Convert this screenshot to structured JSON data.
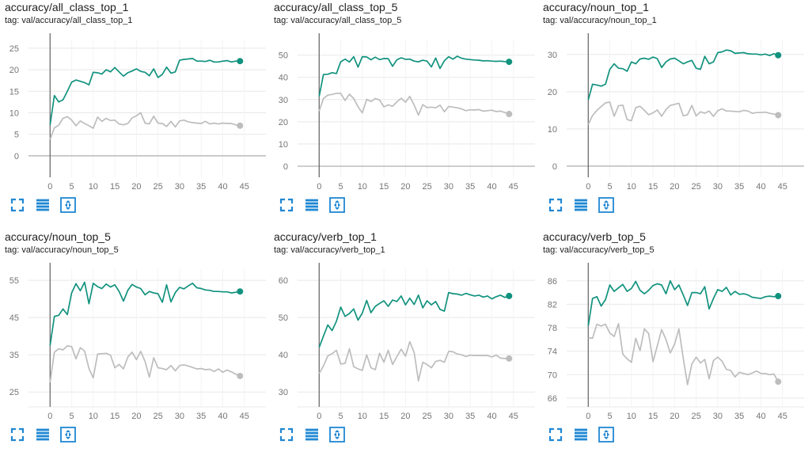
{
  "colors": {
    "train": "#11927e",
    "val": "#bdbdbd",
    "axis": "#616161",
    "grid": "#e8e8e8",
    "icon": "#1f87d3"
  },
  "tools": {
    "expand": "expand-icon",
    "lines": "toggle-log-icon",
    "fit": "fit-domain-icon"
  },
  "chart_data": [
    {
      "type": "line",
      "title": "accuracy/all_class_top_1",
      "subtitle": "tag: val/accuracy/all_class_top_1",
      "ylim": [
        -5,
        27
      ],
      "yticks": [
        0,
        5,
        10,
        15,
        20,
        25
      ],
      "xlim": [
        -5,
        50
      ],
      "xticks": [
        0,
        5,
        10,
        15,
        20,
        25,
        30,
        35,
        40,
        45
      ],
      "series": [
        {
          "role": "train",
          "values": [
            7.2,
            14,
            12.5,
            13,
            15,
            17.1,
            17.6,
            17.3,
            17,
            16.5,
            19.4,
            19.3,
            19,
            20,
            19.5,
            20.5,
            19.5,
            18.5,
            19.3,
            19.7,
            20.2,
            19.6,
            19.4,
            18.6,
            20.2,
            18.2,
            18.9,
            20.6,
            19.2,
            19.5,
            22.2,
            22.4,
            22.5,
            22.6,
            22,
            22,
            21.9,
            22.2,
            21.8,
            21.8,
            22,
            22.1,
            21.8,
            22,
            22
          ]
        },
        {
          "role": "val",
          "values": [
            3.8,
            6.5,
            7.1,
            8.7,
            9.1,
            8.3,
            7,
            8.1,
            7.5,
            7,
            6.4,
            9,
            8,
            8.7,
            8.2,
            8.3,
            7.4,
            7.2,
            7.5,
            8.8,
            9.3,
            10,
            7.6,
            7.4,
            9.2,
            7.6,
            7.5,
            6.8,
            8,
            6.7,
            8.1,
            8.3,
            7.9,
            7.7,
            7.6,
            7.5,
            8,
            7.4,
            7.6,
            7.4,
            7.6,
            7.5,
            7.5,
            7.2,
            7
          ]
        }
      ]
    },
    {
      "type": "line",
      "title": "accuracy/all_class_top_5",
      "subtitle": "tag: val/accuracy/all_class_top_5",
      "ylim": [
        -5,
        57
      ],
      "yticks": [
        0,
        10,
        20,
        30,
        40,
        50
      ],
      "xlim": [
        -5,
        50
      ],
      "xticks": [
        0,
        5,
        10,
        15,
        20,
        25,
        30,
        35,
        40,
        45
      ],
      "series": [
        {
          "role": "train",
          "values": [
            31.5,
            41.3,
            41.4,
            42.1,
            41.7,
            47,
            48.2,
            46.9,
            49.3,
            44.6,
            49.3,
            49.2,
            47.9,
            49.1,
            48,
            48.5,
            48.4,
            45,
            47.9,
            48.8,
            48.1,
            48.2,
            47.3,
            47,
            47.7,
            47.3,
            44.7,
            48.7,
            44,
            47.5,
            49.3,
            48.2,
            49.5,
            48.6,
            48.2,
            48,
            47.8,
            47.7,
            47.4,
            47.5,
            47.3,
            47.2,
            47.3,
            47.1,
            47
          ]
        },
        {
          "role": "val",
          "values": [
            24.8,
            30.5,
            32,
            32.3,
            32.8,
            32.8,
            29.6,
            32.4,
            30.5,
            26.8,
            24,
            30.1,
            29.1,
            30.5,
            29.8,
            26.7,
            27.6,
            27,
            29,
            30.6,
            28.8,
            31.4,
            27.5,
            23,
            27.7,
            26.4,
            26.6,
            26.3,
            27.5,
            24.5,
            26.9,
            26.6,
            26.3,
            25.8,
            25,
            25.4,
            25.3,
            25.5,
            24.8,
            25,
            25.2,
            24.6,
            24.8,
            24.2,
            23.5
          ]
        }
      ]
    },
    {
      "type": "line",
      "title": "accuracy/noun_top_1",
      "subtitle": "tag: val/accuracy/noun_top_1",
      "ylim": [
        -3,
        34
      ],
      "yticks": [
        0,
        10,
        20,
        30
      ],
      "xlim": [
        -5,
        50
      ],
      "xticks": [
        0,
        5,
        10,
        15,
        20,
        25,
        30,
        35,
        40,
        45
      ],
      "series": [
        {
          "role": "train",
          "values": [
            17.8,
            22,
            21.8,
            21.5,
            22,
            26,
            27.5,
            26.3,
            26.2,
            25.5,
            28,
            27.5,
            28.8,
            29,
            28.7,
            29.3,
            28.9,
            26.5,
            28,
            28.8,
            29,
            28.3,
            27.5,
            28,
            28.4,
            26.3,
            26,
            29.5,
            27.5,
            28,
            30.5,
            30.7,
            31.2,
            31,
            30.3,
            30.4,
            30.5,
            30.2,
            30.1,
            30.1,
            29.9,
            30.1,
            29.7,
            30.2,
            29.8
          ]
        },
        {
          "role": "val",
          "values": [
            11.2,
            13.6,
            15,
            16,
            17,
            17.2,
            13.4,
            16.2,
            16.4,
            12.5,
            12.2,
            15.7,
            16.1,
            15,
            13.8,
            14.3,
            15.1,
            13.4,
            15.2,
            16.3,
            16.6,
            16.9,
            13.5,
            13.8,
            16.3,
            13.5,
            14.6,
            14.2,
            14.8,
            13.4,
            14.9,
            15.4,
            14.8,
            14.8,
            14.7,
            14.6,
            15,
            14.8,
            14.2,
            14.4,
            14.4,
            14.5,
            14.2,
            14,
            13.7
          ]
        }
      ]
    },
    {
      "type": "line",
      "title": "accuracy/noun_top_5",
      "subtitle": "tag: val/accuracy/noun_top_5",
      "ylim": [
        21,
        58
      ],
      "yticks": [
        25,
        35,
        45,
        55
      ],
      "xlim": [
        -5,
        50
      ],
      "xticks": [
        0,
        5,
        10,
        15,
        20,
        25,
        30,
        35,
        40,
        45
      ],
      "series": [
        {
          "role": "train",
          "values": [
            37.5,
            45.3,
            45.6,
            47.3,
            45.8,
            51.6,
            54.1,
            52.2,
            54.5,
            48.7,
            54.2,
            53.3,
            52.8,
            54,
            53.2,
            53.8,
            52,
            49.4,
            52.3,
            53.9,
            53.2,
            52.8,
            51.1,
            52,
            51.6,
            51.4,
            49.1,
            53.8,
            49.2,
            51.7,
            53.1,
            52.7,
            53.5,
            54.2,
            53,
            52.8,
            52.4,
            52.3,
            52,
            52,
            51.9,
            51.9,
            51.6,
            51.8,
            52
          ]
        },
        {
          "role": "val",
          "values": [
            27.6,
            35.7,
            36.6,
            36.3,
            37.4,
            37.2,
            33.9,
            36.9,
            36,
            31.3,
            28.8,
            35.2,
            35.3,
            35.4,
            34.9,
            31.5,
            32.4,
            31.2,
            34.4,
            35.7,
            33.7,
            35.9,
            33.2,
            29,
            34.2,
            31.5,
            31.3,
            31,
            32.1,
            30.7,
            32.1,
            32.3,
            32,
            31.6,
            31.2,
            31.3,
            31,
            31.1,
            30.5,
            31.2,
            30.3,
            30.9,
            30.4,
            29.8,
            29.3
          ]
        }
      ]
    },
    {
      "type": "line",
      "title": "accuracy/verb_top_1",
      "subtitle": "tag: val/accuracy/verb_top_1",
      "ylim": [
        26,
        63
      ],
      "yticks": [
        30,
        40,
        50,
        60
      ],
      "xlim": [
        -5,
        50
      ],
      "xticks": [
        0,
        5,
        10,
        15,
        20,
        25,
        30,
        35,
        40,
        45
      ],
      "series": [
        {
          "role": "train",
          "values": [
            42,
            45,
            48,
            46.5,
            49,
            52.8,
            50.3,
            51.1,
            52.3,
            49.3,
            51.2,
            54.6,
            51.3,
            53,
            53.8,
            54.5,
            53,
            54.7,
            54.3,
            55.8,
            53.4,
            55.2,
            53.5,
            56,
            52.6,
            54.5,
            53.4,
            54.3,
            52.2,
            51.7,
            56.7,
            56.4,
            56.3,
            56,
            56.5,
            56.1,
            55.8,
            56,
            55.5,
            55.8,
            55,
            55.6,
            56,
            55.4,
            55.8
          ]
        },
        {
          "role": "val",
          "values": [
            35,
            37,
            39.7,
            40.3,
            41.2,
            37.5,
            37.7,
            41.6,
            36.8,
            36.2,
            35.8,
            40,
            36.5,
            36,
            40.4,
            38,
            41.2,
            37.4,
            39.5,
            41.5,
            39.6,
            43.5,
            40.6,
            33,
            38,
            37.4,
            36.5,
            38.2,
            38.5,
            38,
            40.9,
            40.8,
            40.2,
            40,
            39.5,
            39.9,
            39.8,
            39.8,
            39.8,
            39.8,
            39.4,
            39.9,
            39.1,
            39,
            39
          ]
        }
      ]
    },
    {
      "type": "line",
      "title": "accuracy/verb_top_5",
      "subtitle": "tag: val/accuracy/verb_top_5",
      "ylim": [
        64.5,
        88
      ],
      "yticks": [
        66,
        70,
        74,
        78,
        82,
        86
      ],
      "xlim": [
        -5,
        50
      ],
      "xticks": [
        0,
        5,
        10,
        15,
        20,
        25,
        30,
        35,
        40,
        45
      ],
      "series": [
        {
          "role": "train",
          "values": [
            78.3,
            83,
            83.3,
            81.7,
            82.8,
            85.3,
            84.2,
            84.8,
            85.4,
            84.2,
            84.7,
            85.9,
            84.4,
            83.8,
            84.4,
            85.2,
            85.5,
            85.3,
            83.8,
            86,
            84.5,
            85.3,
            83.6,
            81.8,
            84,
            84,
            83.8,
            85,
            81.2,
            83,
            84.5,
            84.2,
            84.9,
            83.6,
            84.2,
            83.7,
            83.8,
            83.6,
            83.2,
            83.1,
            83,
            83.3,
            83.4,
            83.3,
            83.4
          ]
        },
        {
          "role": "val",
          "values": [
            76.3,
            76.2,
            78.6,
            78.3,
            78.6,
            77.1,
            76.5,
            78.7,
            73.5,
            72.7,
            72.1,
            76.2,
            74.1,
            77.8,
            77,
            72.2,
            74.9,
            77.7,
            76,
            73.7,
            75.2,
            77.8,
            72.8,
            68.3,
            71.8,
            73,
            72,
            72.6,
            69.3,
            72.4,
            73,
            72.3,
            70.9,
            70.7,
            69.6,
            70.4,
            70.2,
            70,
            70.3,
            70.6,
            70.2,
            70.2,
            70,
            70.1,
            68.8
          ]
        }
      ]
    }
  ]
}
